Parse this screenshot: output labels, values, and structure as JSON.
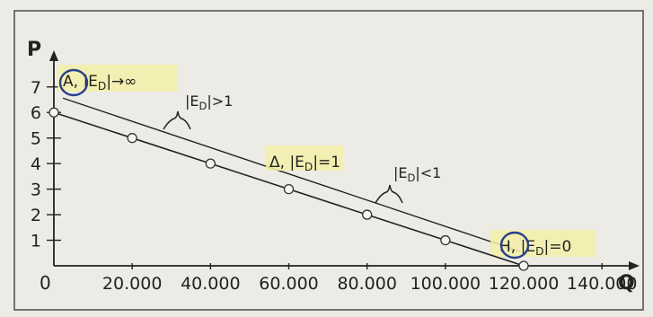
{
  "chart_data": {
    "type": "line",
    "xlabel": "Q",
    "ylabel": "P",
    "origin_label": "0",
    "xlim": [
      0,
      145000
    ],
    "ylim": [
      0,
      7.8
    ],
    "x_ticks": [
      20000,
      40000,
      60000,
      80000,
      100000,
      120000,
      140000
    ],
    "x_tick_labels": [
      "20.000",
      "40.000",
      "60.000",
      "80.000",
      "100.000",
      "120.000",
      "140.000"
    ],
    "y_ticks": [
      1,
      2,
      3,
      4,
      5,
      6,
      7
    ],
    "y_tick_labels": [
      "1",
      "2",
      "3",
      "4",
      "5",
      "6",
      "7"
    ],
    "series": [
      {
        "values_x": [
          0,
          20000,
          40000,
          60000,
          80000,
          100000,
          120000
        ],
        "values_y": [
          6,
          5,
          4,
          3,
          2,
          1,
          0
        ]
      }
    ],
    "point_labels": [
      {
        "id": "A",
        "letter": "A",
        "text": "|E",
        "sub": "D",
        "after": "|→∞",
        "x": 0,
        "y": 6,
        "circled": true,
        "highlight": true
      },
      {
        "id": "delta",
        "letter": "Δ",
        "text": "|E",
        "sub": "D",
        "after": "|=1",
        "x": 60000,
        "y": 3,
        "circled": false,
        "highlight": true
      },
      {
        "id": "H",
        "letter": "H",
        "text": "|E",
        "sub": "D",
        "after": "|=0",
        "x": 120000,
        "y": 0,
        "circled": true,
        "highlight": true
      }
    ],
    "range_labels": [
      {
        "id": "elastic",
        "text": "|E",
        "sub": "D",
        "after": "|>1"
      },
      {
        "id": "inelastic",
        "text": "|E",
        "sub": "D",
        "after": "|<1"
      }
    ],
    "colors": {
      "background": "#ecebe6",
      "ink": "#222222",
      "highlight": "#f5f0a8",
      "circle": "#27408b"
    }
  }
}
